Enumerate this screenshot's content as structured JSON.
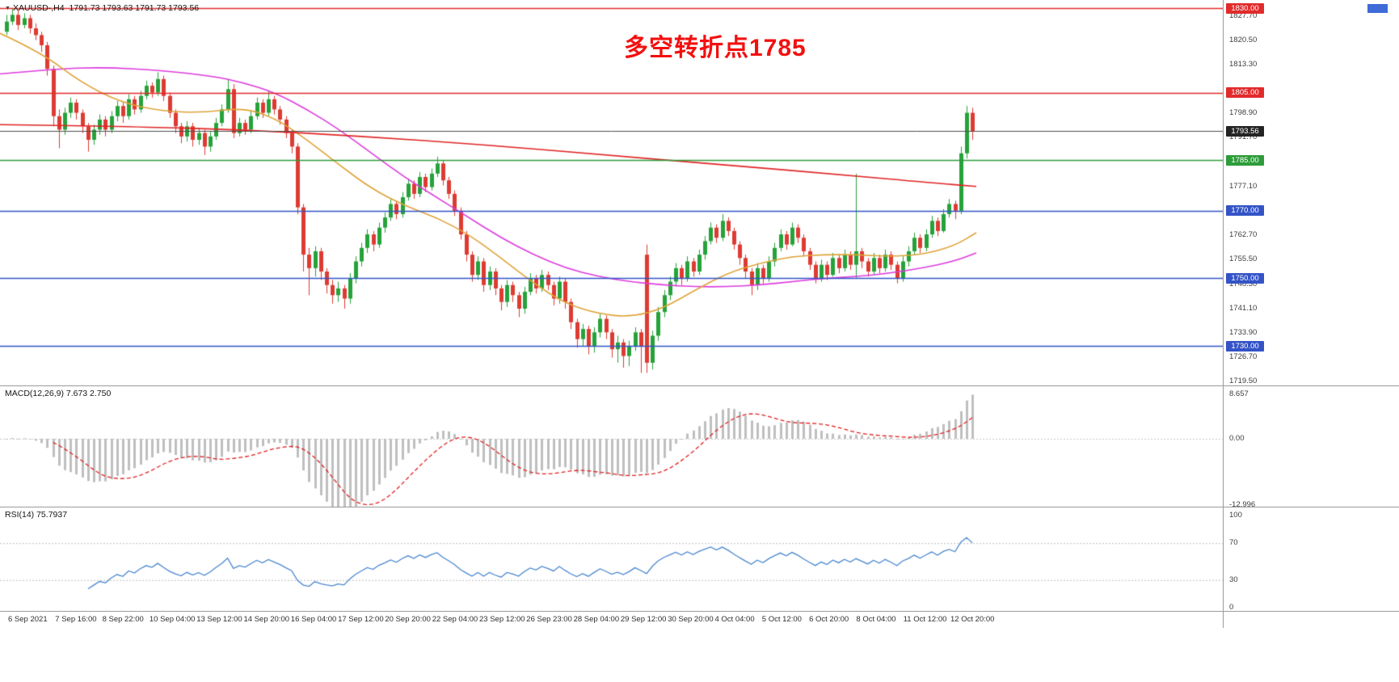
{
  "header": {
    "symbol_period": "XAUUSD-,H4",
    "ohlc": "1791.73 1793.63 1791.73 1793.56"
  },
  "annotation": {
    "text": "多空转折点1785",
    "color": "#f2100f"
  },
  "indicators": {
    "macd": {
      "label": "MACD(12,26,9) 7.673 2.750",
      "macd_value": 7.673,
      "signal_value": 2.75,
      "scale_labels": [
        "8.657",
        "0.00",
        "-12.996"
      ]
    },
    "rsi": {
      "label": "RSI(14) 75.7937",
      "value": 75.7937,
      "scale_labels": [
        "100",
        "70",
        "30",
        "0"
      ],
      "levels": [
        70,
        30
      ]
    }
  },
  "price_scale": {
    "plain_labels": [
      "1827.70",
      "1820.50",
      "1813.30",
      "1798.90",
      "1791.70",
      "1777.10",
      "1762.70",
      "1755.50",
      "1748.30",
      "1741.10",
      "1733.90",
      "1726.70",
      "1719.50"
    ],
    "tagged_levels": [
      {
        "label": "1830.00",
        "price": 1830.0,
        "color": "#e12b2b",
        "bid": false
      },
      {
        "label": "1805.00",
        "price": 1805.0,
        "color": "#e12b2b",
        "bid": false
      },
      {
        "label": "1793.56",
        "price": 1793.56,
        "color": "#242424",
        "bid": true
      },
      {
        "label": "1785.00",
        "price": 1785.0,
        "color": "#2e9c3a",
        "bid": false
      },
      {
        "label": "1770.00",
        "price": 1770.0,
        "color": "#3353c6",
        "bid": false
      },
      {
        "label": "1750.00",
        "price": 1750.0,
        "color": "#3353c6",
        "bid": false
      },
      {
        "label": "1730.00",
        "price": 1730.0,
        "color": "#3353c6",
        "bid": false
      }
    ]
  },
  "time_axis": {
    "labels": [
      "6 Sep 2021",
      "7 Sep 16:00",
      "8 Sep 22:00",
      "10 Sep 04:00",
      "13 Sep 12:00",
      "14 Sep 20:00",
      "16 Sep 04:00",
      "17 Sep 12:00",
      "20 Sep 20:00",
      "22 Sep 04:00",
      "23 Sep 12:00",
      "26 Sep 23:00",
      "28 Sep 04:00",
      "29 Sep 12:00",
      "30 Sep 20:00",
      "4 Oct 04:00",
      "5 Oct 12:00",
      "6 Oct 20:00",
      "8 Oct 04:00",
      "11 Oct 12:00",
      "12 Oct 20:00"
    ]
  },
  "chart_data": {
    "type": "candlestick",
    "symbol": "XAUUSD-",
    "timeframe": "H4",
    "title": "XAUUSD- H4 with MACD(12,26,9) and RSI(14)",
    "y_axis": {
      "min": 1719.5,
      "max": 1830.0
    },
    "colors": {
      "up": "#26a23a",
      "down": "#dd3b32",
      "macd_hist": "#bfbfbf",
      "macd_signal": "#e02020",
      "rsi_line": "#4a87cf"
    },
    "candles": [
      [
        1823,
        1828,
        1822,
        1826
      ],
      [
        1826,
        1830,
        1825,
        1828
      ],
      [
        1828,
        1829.5,
        1823.5,
        1825
      ],
      [
        1825,
        1828.5,
        1824,
        1827
      ],
      [
        1827,
        1828,
        1822.5,
        1824
      ],
      [
        1824,
        1825.5,
        1820.5,
        1822
      ],
      [
        1822,
        1823,
        1817,
        1819
      ],
      [
        1819,
        1820,
        1810,
        1812
      ],
      [
        1812,
        1813,
        1795,
        1798
      ],
      [
        1798,
        1800,
        1788.5,
        1794
      ],
      [
        1794,
        1800.5,
        1792.5,
        1799
      ],
      [
        1799,
        1803.5,
        1797.5,
        1802
      ],
      [
        1802,
        1803,
        1797,
        1799
      ],
      [
        1799,
        1800,
        1793,
        1795
      ],
      [
        1795,
        1796,
        1787.5,
        1791
      ],
      [
        1791,
        1795.5,
        1789.5,
        1794
      ],
      [
        1794,
        1798.5,
        1792.5,
        1797
      ],
      [
        1797,
        1798,
        1792,
        1794
      ],
      [
        1794,
        1799.5,
        1793,
        1798
      ],
      [
        1798,
        1802.5,
        1796.5,
        1801
      ],
      [
        1801,
        1802,
        1796,
        1798
      ],
      [
        1798,
        1804.5,
        1797,
        1803
      ],
      [
        1803,
        1804,
        1798.5,
        1800
      ],
      [
        1800,
        1805.5,
        1799,
        1804
      ],
      [
        1804,
        1808.5,
        1803,
        1807
      ],
      [
        1807,
        1808,
        1803.5,
        1805
      ],
      [
        1805,
        1811,
        1804,
        1809
      ],
      [
        1809,
        1810,
        1802.5,
        1804
      ],
      [
        1804,
        1805,
        1797.5,
        1799
      ],
      [
        1799,
        1800,
        1793,
        1795
      ],
      [
        1795,
        1796,
        1790,
        1792
      ],
      [
        1792,
        1796.5,
        1790.5,
        1795
      ],
      [
        1795,
        1796,
        1789,
        1791
      ],
      [
        1791,
        1794.5,
        1789.5,
        1793
      ],
      [
        1793,
        1794,
        1786.5,
        1789
      ],
      [
        1789,
        1793.5,
        1787.5,
        1792
      ],
      [
        1792,
        1797.5,
        1791,
        1796
      ],
      [
        1796,
        1801.5,
        1795,
        1800
      ],
      [
        1800,
        1809,
        1799,
        1806
      ],
      [
        1806,
        1807.5,
        1791.5,
        1793
      ],
      [
        1793,
        1797.5,
        1792,
        1796
      ],
      [
        1796,
        1797,
        1792.5,
        1794
      ],
      [
        1794,
        1799.5,
        1793,
        1798
      ],
      [
        1798,
        1803.5,
        1797,
        1802
      ],
      [
        1802,
        1803,
        1797.5,
        1799
      ],
      [
        1799,
        1805.5,
        1798,
        1803
      ],
      [
        1803,
        1804,
        1798.5,
        1800
      ],
      [
        1800,
        1801,
        1795.5,
        1797
      ],
      [
        1797,
        1798,
        1791.5,
        1793
      ],
      [
        1793,
        1794,
        1787,
        1789
      ],
      [
        1789,
        1790,
        1769,
        1771
      ],
      [
        1771,
        1772,
        1752,
        1757
      ],
      [
        1757,
        1759,
        1745,
        1753
      ],
      [
        1753,
        1759.5,
        1750.5,
        1758
      ],
      [
        1758,
        1759,
        1749.5,
        1752
      ],
      [
        1752,
        1753,
        1745.5,
        1748
      ],
      [
        1748,
        1749.5,
        1742.5,
        1745
      ],
      [
        1745,
        1749,
        1743,
        1747
      ],
      [
        1747,
        1748,
        1741,
        1744
      ],
      [
        1744,
        1751.5,
        1742.5,
        1750
      ],
      [
        1750,
        1756.5,
        1748.5,
        1755
      ],
      [
        1755,
        1760.5,
        1753.5,
        1759
      ],
      [
        1759,
        1764.5,
        1757.5,
        1763
      ],
      [
        1763,
        1764,
        1758,
        1760
      ],
      [
        1760,
        1766.5,
        1759,
        1765
      ],
      [
        1765,
        1769.5,
        1763.5,
        1768
      ],
      [
        1768,
        1773.5,
        1767,
        1772
      ],
      [
        1772,
        1773,
        1767.5,
        1769
      ],
      [
        1769,
        1775.5,
        1768,
        1774
      ],
      [
        1774,
        1779.5,
        1773,
        1778
      ],
      [
        1778,
        1779,
        1773.5,
        1775
      ],
      [
        1775,
        1781.5,
        1774,
        1780
      ],
      [
        1780,
        1781,
        1775.5,
        1777
      ],
      [
        1777,
        1782.5,
        1776,
        1781
      ],
      [
        1781,
        1786,
        1780,
        1784
      ],
      [
        1784,
        1785,
        1777.5,
        1779
      ],
      [
        1779,
        1780,
        1773.5,
        1775
      ],
      [
        1775,
        1776,
        1768.5,
        1770
      ],
      [
        1770,
        1771,
        1761.5,
        1763
      ],
      [
        1763,
        1764,
        1755,
        1757
      ],
      [
        1757,
        1758,
        1749,
        1751
      ],
      [
        1751,
        1756.5,
        1749.5,
        1755
      ],
      [
        1755,
        1756,
        1746,
        1748
      ],
      [
        1748,
        1753.5,
        1746.5,
        1752
      ],
      [
        1752,
        1753,
        1745,
        1747
      ],
      [
        1747,
        1748,
        1740.5,
        1743
      ],
      [
        1743,
        1749.5,
        1741.5,
        1748
      ],
      [
        1748,
        1749,
        1743,
        1745
      ],
      [
        1745,
        1746,
        1738.5,
        1741
      ],
      [
        1741,
        1747.5,
        1739.5,
        1746
      ],
      [
        1746,
        1751.5,
        1745,
        1750
      ],
      [
        1750,
        1751,
        1745.5,
        1747
      ],
      [
        1747,
        1752.5,
        1746,
        1751
      ],
      [
        1751,
        1752,
        1746.5,
        1748
      ],
      [
        1748,
        1749,
        1742,
        1744
      ],
      [
        1744,
        1750.5,
        1742.5,
        1749
      ],
      [
        1749,
        1750,
        1741,
        1743
      ],
      [
        1743,
        1744,
        1735,
        1737
      ],
      [
        1737,
        1738,
        1729.5,
        1732
      ],
      [
        1732,
        1736.5,
        1730,
        1735
      ],
      [
        1735,
        1736,
        1727.5,
        1730
      ],
      [
        1730,
        1735.5,
        1728,
        1734
      ],
      [
        1734,
        1739.5,
        1732.5,
        1738
      ],
      [
        1738,
        1739,
        1732,
        1734
      ],
      [
        1734,
        1735,
        1726.5,
        1729
      ],
      [
        1729,
        1733,
        1725,
        1731
      ],
      [
        1731,
        1732,
        1723.5,
        1727
      ],
      [
        1727,
        1731.5,
        1724,
        1730
      ],
      [
        1730,
        1735.5,
        1728.5,
        1734
      ],
      [
        1734,
        1735,
        1722,
        1730
      ],
      [
        1757,
        1760,
        1722,
        1725
      ],
      [
        1725,
        1734.5,
        1723,
        1733
      ],
      [
        1733,
        1741.5,
        1731.5,
        1740
      ],
      [
        1740,
        1746.5,
        1738.5,
        1745
      ],
      [
        1745,
        1750.5,
        1743.5,
        1749
      ],
      [
        1749,
        1754.5,
        1747.5,
        1753
      ],
      [
        1753,
        1754,
        1748,
        1750
      ],
      [
        1750,
        1756.5,
        1749,
        1755
      ],
      [
        1755,
        1756,
        1750.5,
        1752
      ],
      [
        1752,
        1758.5,
        1751,
        1757
      ],
      [
        1757,
        1762.5,
        1755.5,
        1761
      ],
      [
        1761,
        1766.5,
        1760,
        1765
      ],
      [
        1765,
        1766,
        1760.5,
        1762
      ],
      [
        1762,
        1769,
        1761,
        1767
      ],
      [
        1767,
        1768,
        1762.5,
        1764
      ],
      [
        1764,
        1765,
        1758.5,
        1760
      ],
      [
        1760,
        1761,
        1754,
        1756
      ],
      [
        1756,
        1757,
        1750,
        1752
      ],
      [
        1752,
        1753,
        1745,
        1748
      ],
      [
        1748,
        1754.5,
        1746.5,
        1753
      ],
      [
        1753,
        1754,
        1748.5,
        1750
      ],
      [
        1750,
        1756.5,
        1749,
        1755
      ],
      [
        1755,
        1760.5,
        1753.5,
        1759
      ],
      [
        1759,
        1764.5,
        1758,
        1763
      ],
      [
        1763,
        1764,
        1758.5,
        1760
      ],
      [
        1760,
        1766.5,
        1759.5,
        1765
      ],
      [
        1765,
        1766,
        1760.5,
        1762
      ],
      [
        1762,
        1763,
        1756.5,
        1758
      ],
      [
        1758,
        1759,
        1752.5,
        1754
      ],
      [
        1754,
        1755,
        1748.5,
        1750
      ],
      [
        1750,
        1755.5,
        1749,
        1754
      ],
      [
        1754,
        1755,
        1749.5,
        1751
      ],
      [
        1751,
        1757.5,
        1750.5,
        1756
      ],
      [
        1756,
        1757,
        1751.5,
        1753
      ],
      [
        1753,
        1758.5,
        1752,
        1757
      ],
      [
        1757,
        1758,
        1752.5,
        1754
      ],
      [
        1754,
        1781,
        1750,
        1758
      ],
      [
        1758,
        1759,
        1753,
        1755
      ],
      [
        1755,
        1756,
        1750.5,
        1752
      ],
      [
        1752,
        1757.5,
        1751,
        1756
      ],
      [
        1756,
        1757,
        1751.5,
        1753
      ],
      [
        1753,
        1758.5,
        1752,
        1757
      ],
      [
        1757,
        1758,
        1752.5,
        1754
      ],
      [
        1754,
        1755,
        1748.5,
        1750
      ],
      [
        1750,
        1756.5,
        1749,
        1755
      ],
      [
        1755,
        1759.5,
        1753.5,
        1758
      ],
      [
        1758,
        1763.5,
        1757,
        1762
      ],
      [
        1762,
        1763,
        1757.5,
        1759
      ],
      [
        1759,
        1764.5,
        1758,
        1763
      ],
      [
        1763,
        1768.5,
        1762,
        1767
      ],
      [
        1767,
        1768,
        1762.5,
        1764
      ],
      [
        1764,
        1770.5,
        1763.5,
        1769
      ],
      [
        1769,
        1773.5,
        1768,
        1772
      ],
      [
        1772,
        1773,
        1767.5,
        1770
      ],
      [
        1770,
        1789,
        1769,
        1787
      ],
      [
        1787,
        1801,
        1785.5,
        1799
      ],
      [
        1799,
        1800.5,
        1791,
        1793.6
      ]
    ],
    "ma_lines": [
      {
        "name": "ma-slow-magenta",
        "color": "#dd3cdd",
        "points": [
          [
            0,
            1810.5
          ],
          [
            70,
            1812
          ],
          [
            130,
            1812.5
          ],
          [
            200,
            1811.5
          ],
          [
            260,
            1810
          ],
          [
            300,
            1808
          ],
          [
            340,
            1805
          ],
          [
            380,
            1800
          ],
          [
            420,
            1794
          ],
          [
            460,
            1787
          ],
          [
            500,
            1780
          ],
          [
            540,
            1774
          ],
          [
            580,
            1768
          ],
          [
            620,
            1762
          ],
          [
            660,
            1757
          ],
          [
            700,
            1753
          ],
          [
            740,
            1750.5
          ],
          [
            780,
            1749
          ],
          [
            820,
            1748
          ],
          [
            860,
            1747.5
          ],
          [
            900,
            1747.5
          ],
          [
            940,
            1748
          ],
          [
            980,
            1749
          ],
          [
            1020,
            1750
          ],
          [
            1060,
            1750.5
          ],
          [
            1100,
            1751.5
          ],
          [
            1140,
            1753
          ],
          [
            1180,
            1755
          ],
          [
            1208,
            1757.5
          ]
        ]
      },
      {
        "name": "ma-mid-gold",
        "color": "#dfa339",
        "points": [
          [
            0,
            1822.5
          ],
          [
            50,
            1817
          ],
          [
            100,
            1808
          ],
          [
            150,
            1802
          ],
          [
            200,
            1799.5
          ],
          [
            250,
            1799
          ],
          [
            300,
            1800.5
          ],
          [
            340,
            1797.5
          ],
          [
            380,
            1791
          ],
          [
            420,
            1783.5
          ],
          [
            460,
            1776.5
          ],
          [
            500,
            1771.5
          ],
          [
            540,
            1768
          ],
          [
            580,
            1763
          ],
          [
            620,
            1756
          ],
          [
            660,
            1748.5
          ],
          [
            700,
            1742.5
          ],
          [
            740,
            1739.5
          ],
          [
            780,
            1738.5
          ],
          [
            820,
            1741
          ],
          [
            860,
            1746.5
          ],
          [
            900,
            1751.5
          ],
          [
            940,
            1754.5
          ],
          [
            980,
            1756.5
          ],
          [
            1020,
            1757
          ],
          [
            1060,
            1757
          ],
          [
            1100,
            1756.5
          ],
          [
            1140,
            1757
          ],
          [
            1180,
            1759.5
          ],
          [
            1208,
            1763.5
          ]
        ]
      },
      {
        "name": "ma-long-red",
        "color": "#e02525",
        "points": [
          [
            0,
            1795.5
          ],
          [
            150,
            1795
          ],
          [
            300,
            1794
          ],
          [
            450,
            1792
          ],
          [
            600,
            1789.5
          ],
          [
            750,
            1786.5
          ],
          [
            900,
            1783.5
          ],
          [
            1050,
            1780.5
          ],
          [
            1150,
            1778.3
          ],
          [
            1208,
            1777.2
          ]
        ]
      }
    ]
  }
}
